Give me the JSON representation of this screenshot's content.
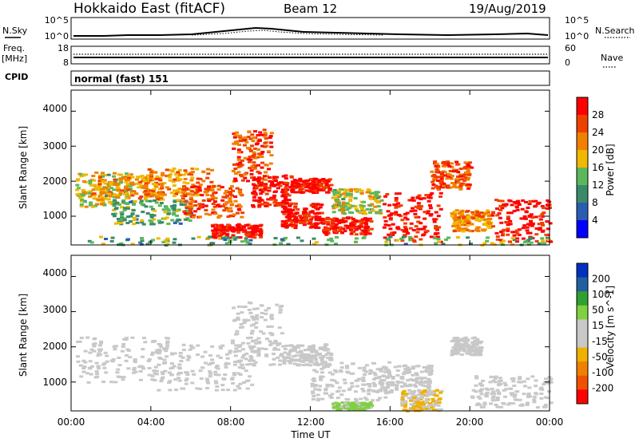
{
  "header": {
    "station": "Hokkaido East (fitACF)",
    "beam": "Beam 12",
    "date": "19/Aug/2019"
  },
  "strip_panels": {
    "nsky_label": "N.Sky",
    "nsky_ticks": [
      "10^5",
      "10^0"
    ],
    "nsearch_label": "N.Search",
    "nsearch_ticks": [
      "10^5",
      "10^0"
    ],
    "freq_label": "Freq.",
    "freq_unit": "[MHz]",
    "freq_ticks": [
      "18",
      "8"
    ],
    "nave_label": "Nave",
    "nave_ticks": [
      "60",
      "0"
    ],
    "cpid_label": "CPID",
    "cpid_value": "normal (fast) 151"
  },
  "colors": {
    "power": [
      "#0000ff",
      "#2a5cb4",
      "#3a8a6a",
      "#5ab85a",
      "#f0b800",
      "#f08000",
      "#f04000",
      "#ff0000"
    ],
    "velocity": [
      "#ff0000",
      "#f05000",
      "#f08000",
      "#f0b000",
      "#c8c8c8",
      "#c8c8c8",
      "#80d040",
      "#30a030",
      "#2060a0",
      "#0030c0"
    ]
  },
  "chart_data": [
    {
      "type": "heatmap",
      "ylabel": "Slant Range [km]",
      "yticks": [
        "1000",
        "2000",
        "3000",
        "4000"
      ],
      "ylim": [
        180,
        4600
      ],
      "colorbar_label": "Power [dB]",
      "colorbar_ticks": [
        "4",
        "8",
        "12",
        "16",
        "20",
        "24",
        "28"
      ],
      "clim": [
        0,
        30
      ],
      "legend_position": "right",
      "regions": [
        {
          "t": [
            0.2,
            3.0
          ],
          "r": [
            1300,
            2300
          ],
          "v": 16
        },
        {
          "t": [
            1.0,
            4.5
          ],
          "r": [
            1500,
            2200
          ],
          "v": 20
        },
        {
          "t": [
            2.0,
            6.0
          ],
          "r": [
            800,
            1500
          ],
          "v": 12
        },
        {
          "t": [
            3.5,
            7.0
          ],
          "r": [
            1600,
            2400
          ],
          "v": 20
        },
        {
          "t": [
            5.5,
            8.5
          ],
          "r": [
            1000,
            1900
          ],
          "v": 24
        },
        {
          "t": [
            7.0,
            9.5
          ],
          "r": [
            400,
            800
          ],
          "v": 28
        },
        {
          "t": [
            8.0,
            10.0
          ],
          "r": [
            2000,
            3500
          ],
          "v": 24
        },
        {
          "t": [
            9.0,
            11.0
          ],
          "r": [
            1300,
            2200
          ],
          "v": 28
        },
        {
          "t": [
            10.5,
            12.5
          ],
          "r": [
            700,
            1400
          ],
          "v": 28
        },
        {
          "t": [
            11.0,
            13.0
          ],
          "r": [
            1700,
            2100
          ],
          "v": 28
        },
        {
          "t": [
            12.5,
            15.0
          ],
          "r": [
            500,
            1000
          ],
          "v": 28
        },
        {
          "t": [
            13.0,
            15.5
          ],
          "r": [
            1100,
            1800
          ],
          "v": 16
        },
        {
          "t": [
            15.5,
            18.5
          ],
          "r": [
            300,
            1700
          ],
          "v": 28
        },
        {
          "t": [
            18.0,
            20.0
          ],
          "r": [
            1800,
            2600
          ],
          "v": 24
        },
        {
          "t": [
            19.0,
            21.0
          ],
          "r": [
            600,
            1200
          ],
          "v": 20
        },
        {
          "t": [
            21.0,
            24.0
          ],
          "r": [
            300,
            1500
          ],
          "v": 28
        },
        {
          "t": [
            0.0,
            24.0
          ],
          "r": [
            200,
            450
          ],
          "v": 12
        }
      ]
    },
    {
      "type": "heatmap",
      "ylabel": "Slant Range [km]",
      "yticks": [
        "1000",
        "2000",
        "3000",
        "4000"
      ],
      "ylim": [
        180,
        4600
      ],
      "xlabel": "Time UT",
      "xticks": [
        "00:00",
        "04:00",
        "08:00",
        "12:00",
        "16:00",
        "20:00",
        "00:00"
      ],
      "xlim": [
        0,
        24
      ],
      "colorbar_label": "Velocity [m s^-1]",
      "colorbar_ticks": [
        "200",
        "100",
        "50",
        "15",
        "-15",
        "-50",
        "-100",
        "-200"
      ],
      "clim": [
        -250,
        250
      ],
      "legend_position": "right",
      "regions": [
        {
          "t": [
            0.2,
            5.0
          ],
          "r": [
            1000,
            2300
          ],
          "v": 0
        },
        {
          "t": [
            4.0,
            9.0
          ],
          "r": [
            800,
            2100
          ],
          "v": 0
        },
        {
          "t": [
            8.0,
            10.5
          ],
          "r": [
            1500,
            3300
          ],
          "v": 0
        },
        {
          "t": [
            10.5,
            13.0
          ],
          "r": [
            1500,
            2100
          ],
          "v": 0
        },
        {
          "t": [
            12.0,
            16.0
          ],
          "r": [
            500,
            1600
          ],
          "v": 30
        },
        {
          "t": [
            13.0,
            15.0
          ],
          "r": [
            250,
            450
          ],
          "v": 60
        },
        {
          "t": [
            15.0,
            18.0
          ],
          "r": [
            700,
            1500
          ],
          "v": 0
        },
        {
          "t": [
            16.5,
            18.5
          ],
          "r": [
            200,
            800
          ],
          "v": -50
        },
        {
          "t": [
            19.0,
            20.5
          ],
          "r": [
            1800,
            2300
          ],
          "v": 30
        },
        {
          "t": [
            20.0,
            24.0
          ],
          "r": [
            300,
            1200
          ],
          "v": 0
        }
      ]
    }
  ]
}
